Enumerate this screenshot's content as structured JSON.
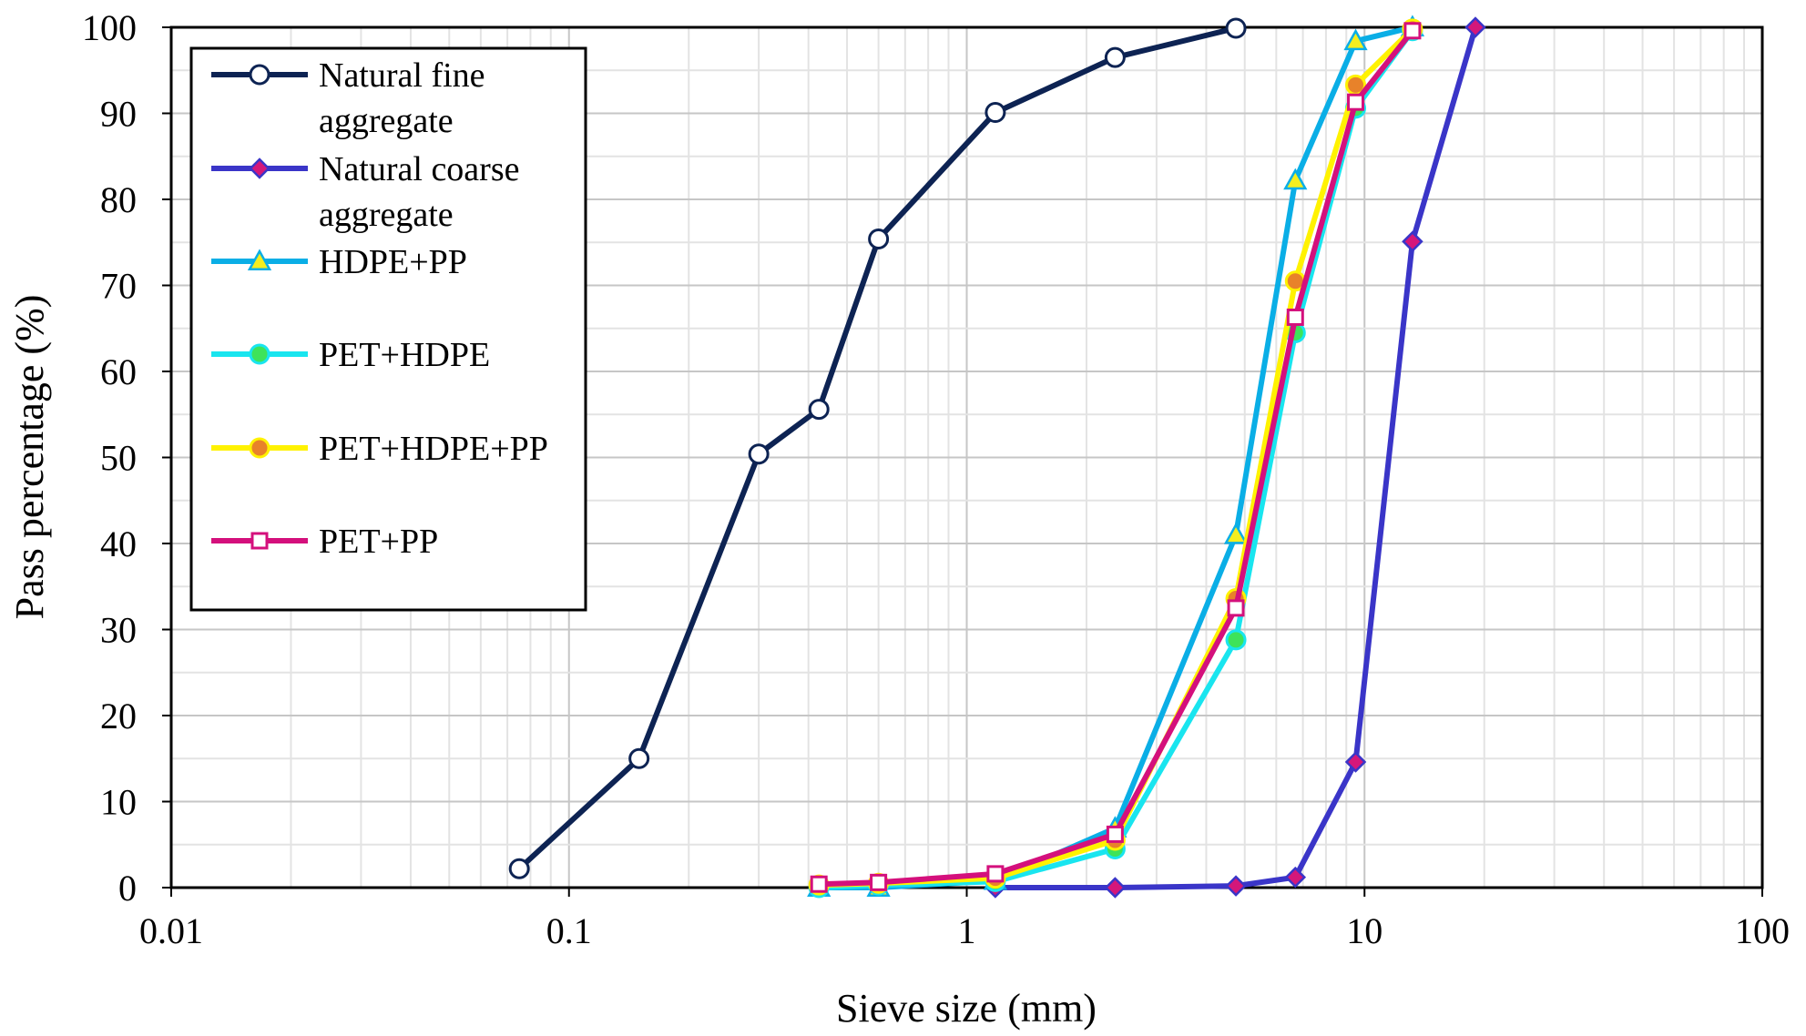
{
  "chart_data": {
    "type": "line",
    "x_scale": "log",
    "xlabel": "Sieve size (mm)",
    "ylabel": "Pass percentage (%)",
    "xlim": [
      0.01,
      100
    ],
    "ylim": [
      0,
      100
    ],
    "grid": true,
    "legend_position": "top-left",
    "x_ticks": [
      {
        "value": 0.01,
        "label": "0.01"
      },
      {
        "value": 0.1,
        "label": "0.1"
      },
      {
        "value": 1,
        "label": "1"
      },
      {
        "value": 10,
        "label": "10"
      },
      {
        "value": 100,
        "label": "100"
      }
    ],
    "y_ticks": [
      {
        "value": 0,
        "label": "0"
      },
      {
        "value": 10,
        "label": "10"
      },
      {
        "value": 20,
        "label": "20"
      },
      {
        "value": 30,
        "label": "30"
      },
      {
        "value": 40,
        "label": "40"
      },
      {
        "value": 50,
        "label": "50"
      },
      {
        "value": 60,
        "label": "60"
      },
      {
        "value": 70,
        "label": "70"
      },
      {
        "value": 80,
        "label": "80"
      },
      {
        "value": 90,
        "label": "90"
      },
      {
        "value": 100,
        "label": "100"
      }
    ],
    "series": [
      {
        "id": "natural-fine-aggregate",
        "name_lines": [
          "Natural fine",
          "aggregate"
        ],
        "line_color": "#0d2353",
        "marker": "circle",
        "marker_fill": "#ffffff",
        "marker_stroke": "#0d2353",
        "x": [
          0.075,
          0.15,
          0.3,
          0.425,
          0.6,
          1.18,
          2.36,
          4.75
        ],
        "y": [
          2.2,
          15,
          50.4,
          55.6,
          75.4,
          90.1,
          96.5,
          99.9
        ]
      },
      {
        "id": "natural-coarse-aggregate",
        "name_lines": [
          "Natural coarse",
          "aggregate"
        ],
        "line_color": "#3a35c8",
        "marker": "diamond",
        "marker_fill": "#d4177a",
        "marker_stroke": "#3a35c8",
        "x": [
          1.18,
          2.36,
          4.75,
          6.7,
          9.5,
          13.2,
          19
        ],
        "y": [
          0,
          0,
          0.2,
          1.2,
          14.6,
          75.1,
          100
        ]
      },
      {
        "id": "hdpe-pp",
        "name_lines": [
          "HDPE+PP"
        ],
        "line_color": "#0aaee6",
        "marker": "triangle",
        "marker_fill": "#f5ee1e",
        "marker_stroke": "#0aaee6",
        "x": [
          0.425,
          0.6,
          1.18,
          2.36,
          4.75,
          6.7,
          9.5,
          13.2
        ],
        "y": [
          0,
          0,
          0.8,
          6.9,
          41,
          82.2,
          98.4,
          100
        ]
      },
      {
        "id": "pet-hdpe",
        "name_lines": [
          "PET+HDPE"
        ],
        "line_color": "#19e5ef",
        "marker": "circle-filled",
        "marker_fill": "#3ee35a",
        "marker_stroke": "#19e5ef",
        "x": [
          0.425,
          0.6,
          1.18,
          2.36,
          4.75,
          6.7,
          9.5,
          13.2
        ],
        "y": [
          0,
          0.3,
          0.7,
          4.5,
          28.8,
          64.5,
          90.6,
          99.6
        ]
      },
      {
        "id": "pet-hdpe-pp",
        "name_lines": [
          "PET+HDPE+PP"
        ],
        "line_color": "#fff200",
        "marker": "circle-filled",
        "marker_fill": "#e8822a",
        "marker_stroke": "#fff200",
        "x": [
          0.425,
          0.6,
          1.18,
          2.36,
          4.75,
          6.7,
          9.5,
          13.2
        ],
        "y": [
          0.3,
          0.5,
          1.1,
          5.5,
          33.6,
          70.5,
          93.3,
          99.8
        ]
      },
      {
        "id": "pet-pp",
        "name_lines": [
          "PET+PP"
        ],
        "line_color": "#d4107c",
        "marker": "square",
        "marker_fill": "#ffffff",
        "marker_stroke": "#d4107c",
        "x": [
          0.425,
          0.6,
          1.18,
          2.36,
          4.75,
          6.7,
          9.5,
          13.2
        ],
        "y": [
          0.4,
          0.6,
          1.6,
          6.2,
          32.5,
          66.3,
          91.3,
          99.6
        ]
      }
    ]
  }
}
